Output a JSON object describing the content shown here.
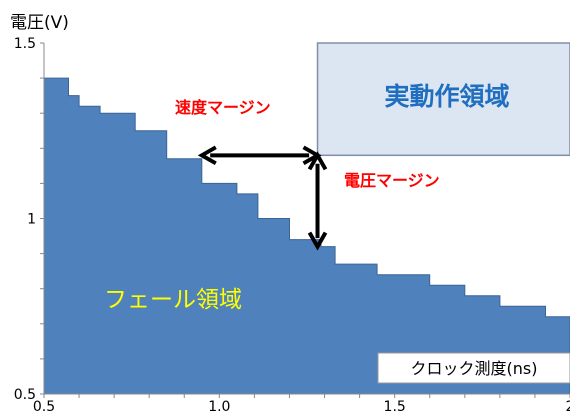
{
  "chart_data": {
    "type": "area",
    "title": "",
    "ylabel": "電圧(V)",
    "xlabel": "クロック測度(ns)",
    "xlim": [
      0.5,
      2.0
    ],
    "ylim": [
      0.5,
      1.5
    ],
    "xticks": [
      "0.5",
      "1.0",
      "1.5",
      "2"
    ],
    "yticks": [
      "0.5",
      "1",
      "1.5"
    ],
    "grid": false,
    "colors": {
      "fail_region_fill": "#4f81bd",
      "fail_region_edge": "#3a6595",
      "operating_region_fill": "#dce6f2",
      "operating_region_edge": "#7f8fa6",
      "operating_region_text": "#1f6ebf",
      "margin_text": "#ff0000",
      "fail_region_text": "#ffff00",
      "arrow": "#000000"
    },
    "series": [
      {
        "name": "フェール領域",
        "points": [
          [
            0.5,
            1.4
          ],
          [
            0.57,
            1.4
          ],
          [
            0.57,
            1.35
          ],
          [
            0.6,
            1.35
          ],
          [
            0.6,
            1.32
          ],
          [
            0.66,
            1.32
          ],
          [
            0.66,
            1.3
          ],
          [
            0.76,
            1.3
          ],
          [
            0.76,
            1.25
          ],
          [
            0.85,
            1.25
          ],
          [
            0.85,
            1.17
          ],
          [
            0.95,
            1.17
          ],
          [
            0.95,
            1.1
          ],
          [
            1.05,
            1.1
          ],
          [
            1.05,
            1.07
          ],
          [
            1.11,
            1.07
          ],
          [
            1.11,
            1.0
          ],
          [
            1.2,
            1.0
          ],
          [
            1.2,
            0.94
          ],
          [
            1.29,
            0.94
          ],
          [
            1.29,
            0.92
          ],
          [
            1.33,
            0.92
          ],
          [
            1.33,
            0.87
          ],
          [
            1.45,
            0.87
          ],
          [
            1.45,
            0.84
          ],
          [
            1.6,
            0.84
          ],
          [
            1.6,
            0.81
          ],
          [
            1.7,
            0.81
          ],
          [
            1.7,
            0.78
          ],
          [
            1.8,
            0.78
          ],
          [
            1.8,
            0.75
          ],
          [
            1.93,
            0.75
          ],
          [
            1.93,
            0.72
          ],
          [
            2.0,
            0.72
          ]
        ]
      }
    ],
    "operating_region": {
      "x": [
        1.28,
        2.0
      ],
      "y": [
        1.18,
        1.5
      ],
      "label": "実動作領域"
    },
    "annotations": [
      {
        "type": "arrow",
        "direction": "horizontal",
        "x": [
          0.95,
          1.28
        ],
        "y": 1.18,
        "label": "速度マージン"
      },
      {
        "type": "arrow",
        "direction": "vertical",
        "x": 1.28,
        "y": [
          0.92,
          1.18
        ],
        "label": "電圧マージン"
      },
      {
        "type": "text",
        "label": "フェール領域"
      }
    ]
  }
}
